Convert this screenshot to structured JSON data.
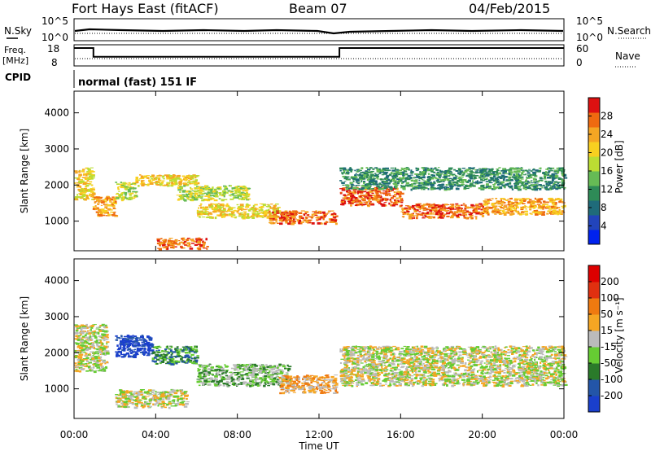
{
  "header": {
    "station": "Fort Hays East (fitACF)",
    "beam": "Beam 07",
    "date": "04/Feb/2015"
  },
  "top_panels": {
    "nsky_label": "N.Sky",
    "nsky_ticks": [
      "10^5",
      "10^0"
    ],
    "nsearch_label": "N.Search",
    "nsearch_ticks": [
      "10^5",
      "10^0"
    ],
    "freq_label_1": "Freq.",
    "freq_label_2": "[MHz]",
    "freq_ticks": [
      "18",
      "8"
    ],
    "nave_label": "Nave",
    "nave_ticks": [
      "60",
      "0"
    ],
    "cpid_label": "CPID",
    "cpid_value": "normal (fast) 151 IF",
    "freq_series": [
      {
        "x": 0.0,
        "y": 18
      },
      {
        "x": 0.95,
        "y": 18
      },
      {
        "x": 0.95,
        "y": 12
      },
      {
        "x": 13.0,
        "y": 12
      },
      {
        "x": 13.0,
        "y": 18
      },
      {
        "x": 24.0,
        "y": 18
      }
    ]
  },
  "chart_data": [
    {
      "type": "heatmap",
      "title": "Power",
      "ylabel": "Slant Range [km]",
      "xlabel": "",
      "ylim": [
        180,
        4600
      ],
      "xlim": [
        0,
        24
      ],
      "yticks": [
        "4000",
        "3000",
        "2000",
        "1000"
      ],
      "colorbar": {
        "label": "Power [dB]",
        "ticks": [
          "28",
          "24",
          "20",
          "16",
          "12",
          "8",
          "4"
        ],
        "colors": [
          "#0022ee",
          "#2244bb",
          "#1f6b7a",
          "#2e8b57",
          "#66bb55",
          "#bbdd33",
          "#f8d020",
          "#f5a623",
          "#ef6a10",
          "#dd1111"
        ]
      },
      "bands": [
        {
          "x0": 0.0,
          "x1": 0.9,
          "r0": 1600,
          "r1": 2500,
          "level": 6
        },
        {
          "x0": 0.9,
          "x1": 2.0,
          "r0": 1150,
          "r1": 1700,
          "level": 7
        },
        {
          "x0": 2.0,
          "x1": 3.0,
          "r0": 1600,
          "r1": 2100,
          "level": 5
        },
        {
          "x0": 3.0,
          "x1": 6.0,
          "r0": 2000,
          "r1": 2300,
          "level": 6
        },
        {
          "x0": 5.0,
          "x1": 8.5,
          "r0": 1600,
          "r1": 2000,
          "level": 5
        },
        {
          "x0": 6.0,
          "x1": 10.0,
          "r0": 1100,
          "r1": 1500,
          "level": 6
        },
        {
          "x0": 9.5,
          "x1": 12.8,
          "r0": 950,
          "r1": 1300,
          "level": 8
        },
        {
          "x0": 4.0,
          "x1": 6.5,
          "r0": 250,
          "r1": 550,
          "level": 8
        },
        {
          "x0": 13.0,
          "x1": 16.0,
          "r0": 1450,
          "r1": 1950,
          "level": 8
        },
        {
          "x0": 16.0,
          "x1": 20.0,
          "r0": 1100,
          "r1": 1500,
          "level": 8
        },
        {
          "x0": 20.0,
          "x1": 24.0,
          "r0": 1200,
          "r1": 1650,
          "level": 7
        },
        {
          "x0": 13.0,
          "x1": 24.0,
          "r0": 1900,
          "r1": 2500,
          "level": 3
        }
      ]
    },
    {
      "type": "heatmap",
      "title": "Velocity",
      "ylabel": "Slant Range [km]",
      "xlabel": "Time UT",
      "ylim": [
        180,
        4600
      ],
      "xlim": [
        0,
        24
      ],
      "yticks": [
        "4000",
        "3000",
        "2000",
        "1000"
      ],
      "xticks": [
        "00:00",
        "04:00",
        "08:00",
        "12:00",
        "16:00",
        "20:00",
        "00:00"
      ],
      "colorbar": {
        "label": "Velocity [m s⁻¹]",
        "ticks": [
          "200",
          "100",
          "50",
          "15",
          "-15",
          "-50",
          "-100",
          "-200"
        ],
        "colors": [
          "#1a3fcc",
          "#2355a8",
          "#2a7a2a",
          "#66cc33",
          "#bbbbbb",
          "#f5a623",
          "#ef7a10",
          "#e03010",
          "#dd0000"
        ]
      },
      "bands": [
        {
          "x0": 0.0,
          "x1": 1.6,
          "r0": 1500,
          "r1": 2800,
          "level": 4
        },
        {
          "x0": 2.0,
          "x1": 3.8,
          "r0": 1900,
          "r1": 2500,
          "level": 0
        },
        {
          "x0": 3.8,
          "x1": 6.0,
          "r0": 1700,
          "r1": 2200,
          "level": 2
        },
        {
          "x0": 6.0,
          "x1": 10.5,
          "r0": 1100,
          "r1": 1700,
          "level": 3
        },
        {
          "x0": 10.0,
          "x1": 12.8,
          "r0": 900,
          "r1": 1400,
          "level": 5
        },
        {
          "x0": 2.0,
          "x1": 5.5,
          "r0": 500,
          "r1": 1000,
          "level": 4
        },
        {
          "x0": 13.0,
          "x1": 24.0,
          "r0": 1100,
          "r1": 2200,
          "level": 4
        }
      ]
    }
  ]
}
